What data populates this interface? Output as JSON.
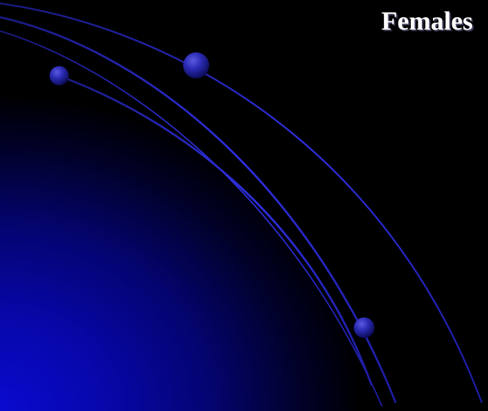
{
  "slide": {
    "title": "Females"
  },
  "colors": {
    "background": "#000000",
    "glow": "#0a0ad0",
    "arc": "#2a2ad8",
    "orb": "#2b2bb5",
    "title_text": "#ffffff"
  }
}
